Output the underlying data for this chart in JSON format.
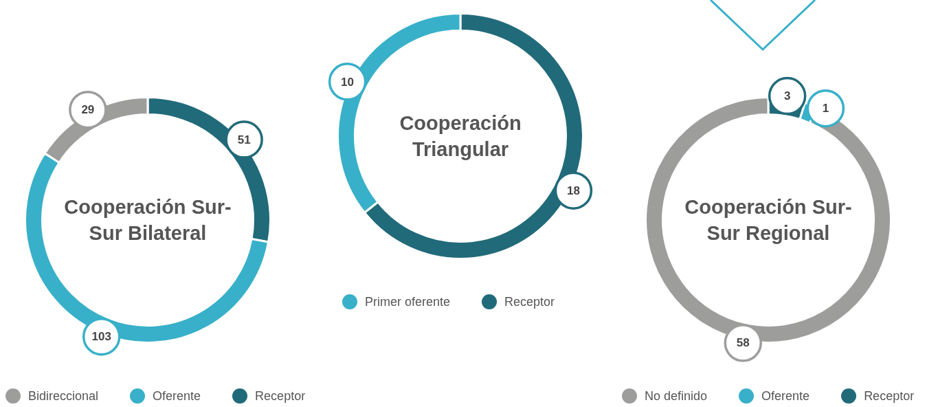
{
  "chart_data": [
    {
      "type": "donut",
      "title": "Cooperación Sur- Sur Bilateral",
      "categories": [
        "Receptor",
        "Oferente",
        "Bidireccional"
      ],
      "values": [
        51,
        103,
        29
      ],
      "colors": [
        "#216a7a",
        "#38b0c9",
        "#9d9d9c"
      ],
      "data_labels": true,
      "legend": "bottom"
    },
    {
      "type": "donut",
      "title": "Cooperación Triangular",
      "categories": [
        "Receptor",
        "Primer oferente"
      ],
      "values": [
        18,
        10
      ],
      "colors": [
        "#216a7a",
        "#38b0c9"
      ],
      "data_labels": true,
      "legend": "bottom"
    },
    {
      "type": "donut",
      "title": "Cooperación Sur- Sur Regional",
      "categories": [
        "Receptor",
        "Oferente",
        "No definido"
      ],
      "values": [
        3,
        1,
        58
      ],
      "colors": [
        "#216a7a",
        "#38b0c9",
        "#9d9d9c"
      ],
      "data_labels": true,
      "legend": "bottom"
    }
  ]
}
